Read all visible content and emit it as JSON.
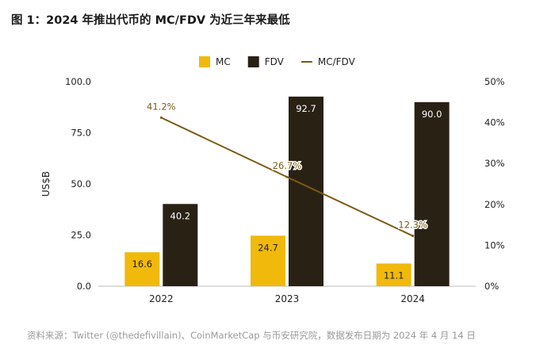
{
  "figure": {
    "title": "图 1：2024 年推出代币的 MC/FDV 为近三年来最低",
    "source": "资料来源：Twitter (@thedefivillain)、CoinMarketCap 与币安研究院，数据发布日期为 2024 年 4 月 14 日"
  },
  "chart_data": {
    "type": "bar",
    "categories": [
      "2022",
      "2023",
      "2024"
    ],
    "series": [
      {
        "name": "MC",
        "type": "bar",
        "axis": "left",
        "color": "#F0B90B",
        "values": [
          16.6,
          24.7,
          11.1
        ],
        "labels": [
          "16.6",
          "24.7",
          "11.1"
        ]
      },
      {
        "name": "FDV",
        "type": "bar",
        "axis": "left",
        "color": "#2A2115",
        "values": [
          40.2,
          92.7,
          90.0
        ],
        "labels": [
          "40.2",
          "92.7",
          "90.0"
        ]
      },
      {
        "name": "MC/FDV",
        "type": "line",
        "axis": "right",
        "color": "#7A5A14",
        "values": [
          41.2,
          26.7,
          12.3
        ],
        "labels": [
          "41.2%",
          "26.7%",
          "12.3%"
        ]
      }
    ],
    "ylabel": "US$B",
    "ylim": [
      0,
      100
    ],
    "yticks": [
      "0.0",
      "25.0",
      "50.0",
      "75.0",
      "100.0"
    ],
    "y2lim": [
      0,
      50
    ],
    "y2ticks": [
      "0%",
      "10%",
      "20%",
      "30%",
      "40%",
      "50%"
    ],
    "legend": "top-center",
    "grid": false
  }
}
